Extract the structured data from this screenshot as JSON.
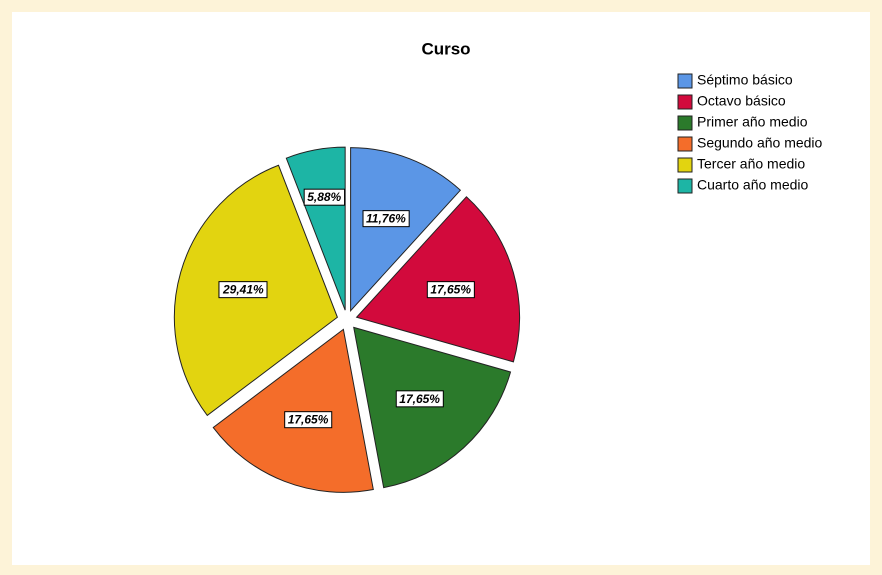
{
  "chart_data": {
    "type": "pie",
    "title": "Curso",
    "categories": [
      "Séptimo básico",
      "Octavo básico",
      "Primer año medio",
      "Segundo año medio",
      "Tercer año medio",
      "Cuarto año medio"
    ],
    "values": [
      11.76,
      17.65,
      17.65,
      17.65,
      29.41,
      5.88
    ],
    "value_labels": [
      "11,76%",
      "17,65%",
      "17,65%",
      "17,65%",
      "29,41%",
      "5,88%"
    ],
    "colors": [
      "#5b96e6",
      "#d20a3c",
      "#2b7a2b",
      "#f46d2a",
      "#e2d410",
      "#1db5a5"
    ],
    "legend": "top-right"
  }
}
